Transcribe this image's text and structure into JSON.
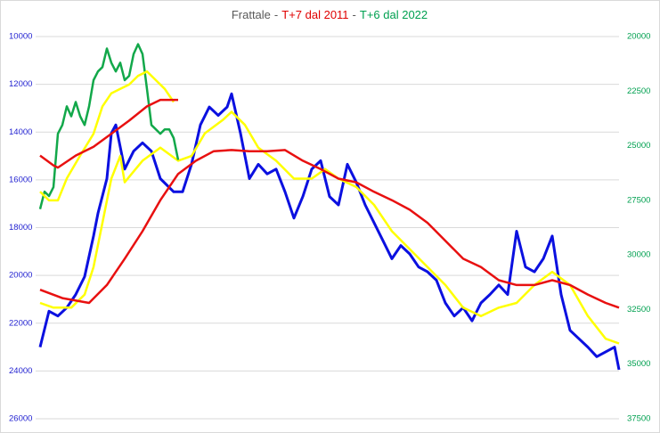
{
  "chart_data": {
    "type": "line",
    "title_parts": [
      {
        "text": "Frattale",
        "color": "#595959"
      },
      {
        "text": "-",
        "color": "#595959"
      },
      {
        "text": "T+7 dal 2011",
        "color": "#e00000"
      },
      {
        "text": "-",
        "color": "#595959"
      },
      {
        "text": "T+6 dal 2022",
        "color": "#00a050"
      }
    ],
    "xlim": [
      0,
      655
    ],
    "ylim": [
      10000,
      26000
    ],
    "y_reversed": true,
    "yticks": [
      10000,
      12000,
      14000,
      16000,
      18000,
      20000,
      22000,
      24000,
      26000
    ],
    "ytick_color": "#1f1fd0",
    "y2lim": [
      20000,
      37500
    ],
    "y2_reversed": true,
    "y2ticks": [
      20000,
      22500,
      25000,
      27500,
      30000,
      32500,
      35000,
      37500
    ],
    "y2tick_color": "#00a050",
    "grid": true,
    "series": [
      {
        "color": "#0b10e0",
        "width": 3,
        "x": [
          5,
          15,
          25,
          35,
          45,
          55,
          65,
          70,
          80,
          85,
          90,
          100,
          110,
          120,
          130,
          140,
          155,
          165,
          175,
          185,
          195,
          205,
          215,
          220,
          230,
          240,
          250,
          260,
          270,
          280,
          290,
          300,
          310,
          320,
          330,
          340,
          350,
          360,
          370,
          380,
          390,
          400,
          410,
          420,
          430,
          440,
          450,
          460,
          470,
          480,
          490,
          500,
          510,
          520,
          530,
          540,
          550,
          560,
          570,
          580,
          590,
          600,
          610,
          620,
          630,
          640,
          650,
          655
        ],
        "values": [
          23000,
          21500,
          21700,
          21350,
          20800,
          20050,
          18350,
          17400,
          15950,
          14050,
          13700,
          15550,
          14800,
          14450,
          14800,
          15950,
          16500,
          16500,
          15350,
          13700,
          12950,
          13300,
          12950,
          12400,
          14050,
          15950,
          15350,
          15750,
          15550,
          16500,
          17600,
          16700,
          15550,
          15200,
          16700,
          17050,
          15350,
          16100,
          17050,
          17800,
          18550,
          19300,
          18750,
          19100,
          19650,
          19850,
          20200,
          21150,
          21700,
          21350,
          21900,
          21150,
          20800,
          20400,
          20800,
          18150,
          19650,
          19850,
          19300,
          18350,
          20800,
          22300,
          22650,
          23000,
          23400,
          23200,
          23000,
          23950
        ]
      },
      {
        "color": "#ffff00",
        "width": 2.5,
        "x": [
          5,
          20,
          40,
          55,
          65,
          75,
          85,
          95,
          100,
          120,
          140,
          160,
          175,
          190,
          210,
          220,
          235,
          250,
          270,
          290,
          310,
          325,
          340,
          360,
          380,
          400,
          420,
          440,
          460,
          480,
          500,
          520,
          540,
          560,
          580,
          600,
          620,
          640,
          655
        ],
        "values": [
          21150,
          21350,
          21350,
          20800,
          19650,
          17800,
          15950,
          15000,
          16100,
          15200,
          14650,
          15200,
          15000,
          14050,
          13500,
          13150,
          13700,
          14650,
          15200,
          15950,
          15950,
          15550,
          15950,
          16300,
          17050,
          18150,
          18900,
          19650,
          20400,
          21350,
          21700,
          21350,
          21150,
          20400,
          19850,
          20400,
          21700,
          22650,
          22850
        ]
      },
      {
        "color": "#e81010",
        "width": 2.5,
        "x": [
          5,
          30,
          60,
          80,
          100,
          120,
          140,
          160,
          180,
          200,
          220,
          240,
          260,
          280,
          300,
          320,
          340,
          360,
          380,
          400,
          420,
          440,
          460,
          480,
          500,
          520,
          540,
          560,
          580,
          600,
          620,
          640,
          655
        ],
        "values": [
          20600,
          20950,
          21150,
          20400,
          19300,
          18150,
          16850,
          15750,
          15200,
          14800,
          14750,
          14800,
          14800,
          14750,
          15200,
          15550,
          15950,
          16100,
          16500,
          16850,
          17250,
          17800,
          18550,
          19300,
          19650,
          20200,
          20400,
          20400,
          20200,
          20400,
          20800,
          21150,
          21350
        ]
      },
      {
        "color": "#12a84a",
        "width": 2.5,
        "axis": "y2",
        "x": [
          5,
          10,
          15,
          20,
          25,
          30,
          35,
          40,
          45,
          50,
          55,
          60,
          65,
          70,
          75,
          80,
          85,
          90,
          95,
          100,
          105,
          110,
          115,
          120,
          125,
          130,
          135,
          140,
          145,
          150,
          155,
          160
        ],
        "values": [
          27900,
          27100,
          27300,
          26900,
          24450,
          24050,
          23200,
          23650,
          23000,
          23650,
          24050,
          23200,
          22000,
          21600,
          21400,
          20550,
          21200,
          21600,
          21200,
          22000,
          21800,
          20800,
          20350,
          20800,
          22400,
          24050,
          24250,
          24450,
          24250,
          24250,
          24650,
          25650
        ]
      },
      {
        "color": "#ffff00",
        "width": 2.5,
        "axis": "y2",
        "x": [
          5,
          15,
          25,
          35,
          50,
          65,
          75,
          85,
          95,
          105,
          115,
          125,
          135,
          145,
          155
        ],
        "values": [
          27100,
          27500,
          27500,
          26500,
          25450,
          24450,
          23200,
          22600,
          22400,
          22200,
          21800,
          21600,
          22000,
          22400,
          23000
        ]
      },
      {
        "color": "#e81010",
        "width": 2.5,
        "axis": "y2",
        "x": [
          5,
          20,
          25,
          45,
          65,
          85,
          105,
          125,
          140,
          160
        ],
        "values": [
          25450,
          25900,
          26000,
          25450,
          25050,
          24450,
          23850,
          23200,
          22900,
          22900
        ]
      }
    ]
  }
}
